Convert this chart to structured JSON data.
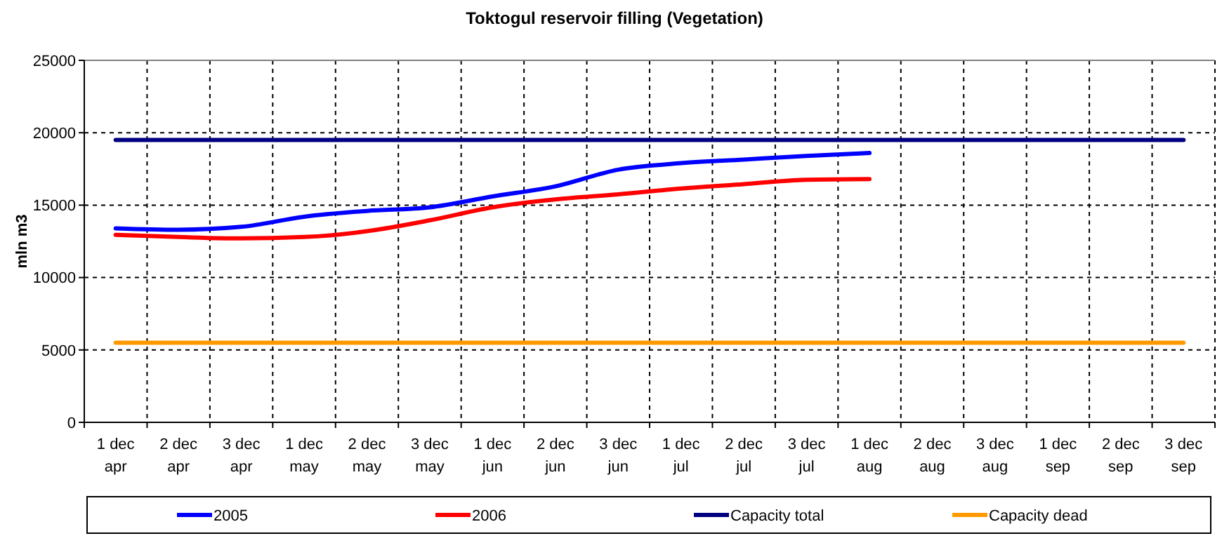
{
  "chart_data": {
    "type": "line",
    "title": "Toktogul  reservoir filling (Vegetation)",
    "ylabel": "mln m3",
    "categories": [
      "1 dec\napr",
      "2 dec\napr",
      "3 dec\napr",
      "1 dec\nmay",
      "2 dec\nmay",
      "3 dec\nmay",
      "1 dec\njun",
      "2 dec\njun",
      "3 dec\njun",
      "1 dec\njul",
      "2 dec\njul",
      "3 dec\njul",
      "1 dec\naug",
      "2 dec\naug",
      "3 dec\naug",
      "1 dec\nsep",
      "2 dec\nsep",
      "3 dec\nsep"
    ],
    "series": [
      {
        "name": "2005",
        "color": "#0000ff",
        "values": [
          13400,
          13300,
          13500,
          14200,
          14600,
          14850,
          15600,
          16300,
          17450,
          17900,
          18150,
          18400,
          18600,
          null,
          null,
          null,
          null,
          null
        ]
      },
      {
        "name": "2006",
        "color": "#ff0000",
        "values": [
          12950,
          12800,
          12700,
          12800,
          13200,
          13950,
          14850,
          15400,
          15750,
          16150,
          16450,
          16750,
          16800,
          null,
          null,
          null,
          null,
          null
        ]
      },
      {
        "name": "Capacity total",
        "color": "#000080",
        "values": [
          19500,
          19500,
          19500,
          19500,
          19500,
          19500,
          19500,
          19500,
          19500,
          19500,
          19500,
          19500,
          19500,
          19500,
          19500,
          19500,
          19500,
          19500
        ]
      },
      {
        "name": "Capacity dead",
        "color": "#ff9900",
        "values": [
          5500,
          5500,
          5500,
          5500,
          5500,
          5500,
          5500,
          5500,
          5500,
          5500,
          5500,
          5500,
          5500,
          5500,
          5500,
          5500,
          5500,
          5500
        ]
      }
    ],
    "ylim": [
      0,
      25000
    ],
    "yticks": [
      0,
      5000,
      10000,
      15000,
      20000,
      25000
    ],
    "grid": true,
    "legend": "bottom",
    "marker": "none",
    "line_style": "solid"
  }
}
